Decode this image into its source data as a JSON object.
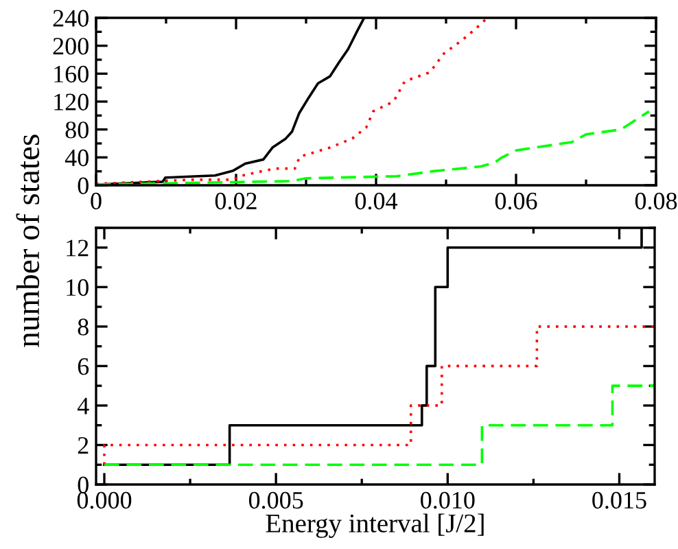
{
  "chart_data": [
    {
      "type": "line",
      "xlim": [
        0,
        0.08
      ],
      "ylim": [
        0,
        240
      ],
      "xticks": [
        0,
        0.02,
        0.04,
        0.06,
        0.08
      ],
      "yticks": [
        0,
        40,
        80,
        120,
        160,
        200,
        240
      ],
      "grid": false,
      "marker": "none",
      "series": [
        {
          "color": "#000000",
          "line_style": "solid",
          "x": [
            0,
            0.0095,
            0.0099,
            0.017,
            0.0196,
            0.0213,
            0.0239,
            0.0252,
            0.0271,
            0.028,
            0.029,
            0.0304,
            0.0317,
            0.0334,
            0.0347,
            0.036,
            0.0373,
            0.0383
          ],
          "values": [
            1,
            5,
            11,
            14,
            21,
            31,
            37,
            54,
            67,
            77,
            103,
            126,
            146,
            156,
            176,
            195,
            221,
            240
          ]
        },
        {
          "color": "#ff0000",
          "line_style": "dotted",
          "x": [
            0,
            0.009,
            0.0137,
            0.0196,
            0.0209,
            0.0255,
            0.0284,
            0.0291,
            0.0334,
            0.0366,
            0.0386,
            0.0396,
            0.0425,
            0.0441,
            0.0477,
            0.0497,
            0.0523,
            0.0543,
            0.0559
          ],
          "values": [
            2,
            6,
            8,
            8,
            14,
            24,
            24,
            41,
            54,
            67,
            83,
            106,
            120,
            149,
            162,
            189,
            208,
            225,
            240
          ]
        },
        {
          "color": "#00ff00",
          "line_style": "dashed",
          "x": [
            0,
            0.011,
            0.028,
            0.03,
            0.043,
            0.048,
            0.055,
            0.057,
            0.058,
            0.06,
            0.068,
            0.07,
            0.075,
            0.079
          ],
          "values": [
            1,
            3,
            6,
            10,
            13,
            20,
            27,
            33,
            40,
            50,
            62,
            73,
            80,
            106
          ]
        }
      ]
    },
    {
      "type": "step",
      "xlabel": "Energy interval [J/2]",
      "ylabel": "number of states",
      "xlim": [
        -0.00024,
        0.01603
      ],
      "ylim": [
        0,
        13
      ],
      "xticks": [
        {
          "value": 0,
          "label": "0.000"
        },
        {
          "value": 0.005,
          "label": "0.005"
        },
        {
          "value": 0.01,
          "label": "0.010"
        },
        {
          "value": 0.015,
          "label": "0.015"
        }
      ],
      "yticks": [
        0,
        2,
        4,
        6,
        8,
        10,
        12
      ],
      "grid": false,
      "marker": "none",
      "series": [
        {
          "color": "#000000",
          "line_style": "solid",
          "x": [
            0,
            0.00365,
            0.00925,
            0.00939,
            0.00964,
            0.01,
            0.01565
          ],
          "values": [
            1,
            3,
            4,
            6,
            10,
            12,
            13
          ]
        },
        {
          "color": "#ff0000",
          "line_style": "dotted",
          "x": [
            0,
            0,
            0.00893,
            0.00983,
            0.0126,
            0.01603
          ],
          "values": [
            1,
            2,
            4,
            6,
            8,
            8
          ]
        },
        {
          "color": "#00ff00",
          "line_style": "dashed",
          "x": [
            0,
            0.011,
            0.0148,
            0.01603
          ],
          "values": [
            1,
            3,
            5,
            5
          ]
        }
      ]
    }
  ]
}
